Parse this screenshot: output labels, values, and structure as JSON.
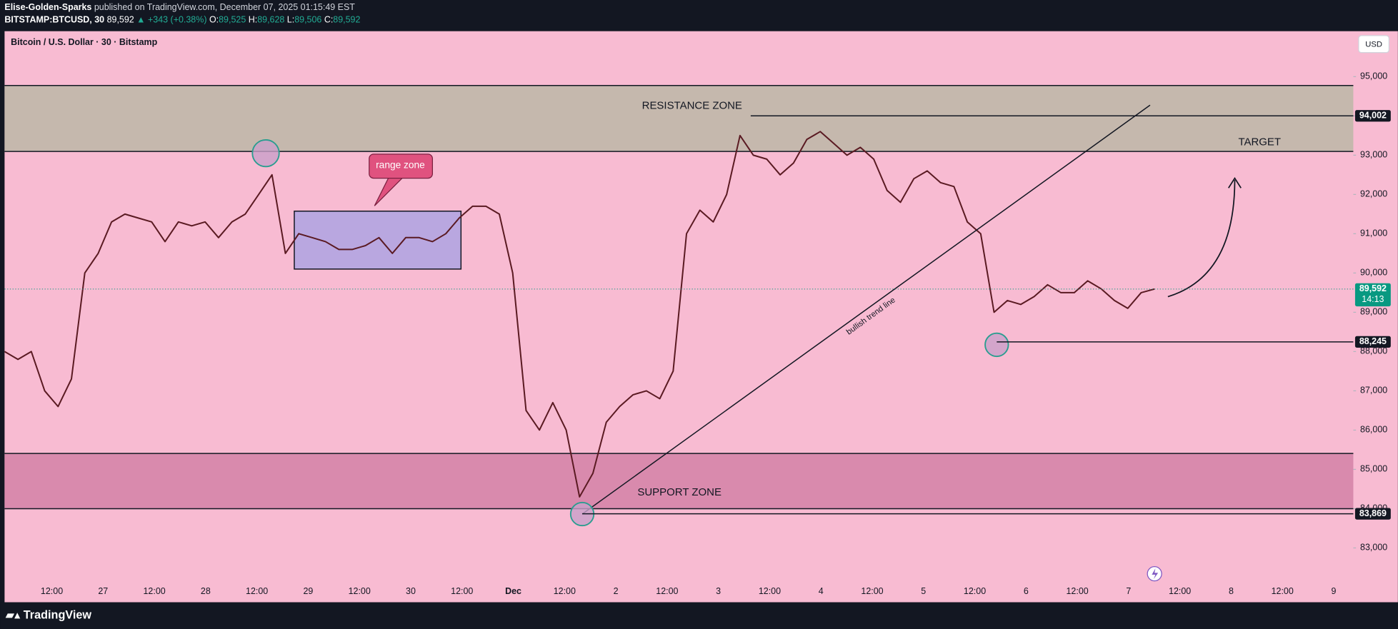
{
  "header": {
    "publisher": "Elise-Golden-Sparks",
    "published": "published on TradingView.com, December 07, 2025 01:15:49 EST",
    "symbol": "BITSTAMP:BTCUSD, 30",
    "last": "89,592",
    "change": "▲ +343 (+0.38%)",
    "ohlc": [
      {
        "label": "O:",
        "value": "89,525"
      },
      {
        "label": "H:",
        "value": "89,628"
      },
      {
        "label": "L:",
        "value": "89,506"
      },
      {
        "label": "C:",
        "value": "89,592"
      }
    ]
  },
  "footer": {
    "brand": "TradingView"
  },
  "chart_data": {
    "type": "line",
    "title": "Bitcoin / U.S. Dollar · 30 · Bitstamp",
    "currency": "USD",
    "color": "#5a1a22",
    "grid": false,
    "ylim": [
      82206,
      96157
    ],
    "yticks": [
      {
        "value": 83000,
        "label": "83,000"
      },
      {
        "value": 84000,
        "label": "84,000"
      },
      {
        "value": 85000,
        "label": "85,000"
      },
      {
        "value": 86000,
        "label": "86,000"
      },
      {
        "value": 87000,
        "label": "87,000"
      },
      {
        "value": 88000,
        "label": "88,000"
      },
      {
        "value": 89000,
        "label": "89,000"
      },
      {
        "value": 90000,
        "label": "90,000"
      },
      {
        "value": 91000,
        "label": "91,000"
      },
      {
        "value": 92000,
        "label": "92,000"
      },
      {
        "value": 93000,
        "label": "93,000"
      },
      {
        "value": 94000,
        "label": "94,000"
      },
      {
        "value": 95000,
        "label": "95,000"
      }
    ],
    "x_labels": [
      "12:00",
      "27",
      "12:00",
      "28",
      "12:00",
      "29",
      "12:00",
      "30",
      "12:00",
      "Dec",
      "12:00",
      "2",
      "12:00",
      "3",
      "12:00",
      "4",
      "12:00",
      "5",
      "12:00",
      "6",
      "12:00",
      "7",
      "12:00",
      "8",
      "12:00",
      "9"
    ],
    "values": [
      88000,
      87800,
      88000,
      87000,
      86600,
      87300,
      90000,
      90500,
      91300,
      91500,
      91400,
      91300,
      90800,
      91300,
      91200,
      91300,
      90900,
      91300,
      91500,
      92000,
      92500,
      90500,
      91000,
      90900,
      90800,
      90600,
      90600,
      90700,
      90900,
      90500,
      90900,
      90900,
      90800,
      91000,
      91400,
      91700,
      91700,
      91500,
      90000,
      86500,
      86000,
      86700,
      86000,
      84300,
      84900,
      86200,
      86600,
      86900,
      87000,
      86800,
      87500,
      91000,
      91600,
      91300,
      92000,
      93500,
      93000,
      92900,
      92500,
      92800,
      93400,
      93600,
      93300,
      93000,
      93200,
      92900,
      92100,
      91800,
      92400,
      92600,
      92300,
      92200,
      91300,
      91000,
      89000,
      89300,
      89200,
      89400,
      89700,
      89500,
      89500,
      89800,
      89600,
      89300,
      89100,
      89500,
      89592
    ],
    "levels": [
      {
        "value": 94002,
        "label": "94,002"
      },
      {
        "value": 89592,
        "label": "89,592"
      },
      {
        "value": 88245,
        "label": "88,245"
      },
      {
        "value": 83869,
        "label": "83,869"
      }
    ],
    "countdown": "14:13",
    "annotations": {
      "resistance": "RESISTANCE ZONE",
      "support": "SUPPORT ZONE",
      "target": "TARGET",
      "range": "range zone",
      "trend": "bullish trend line"
    }
  }
}
